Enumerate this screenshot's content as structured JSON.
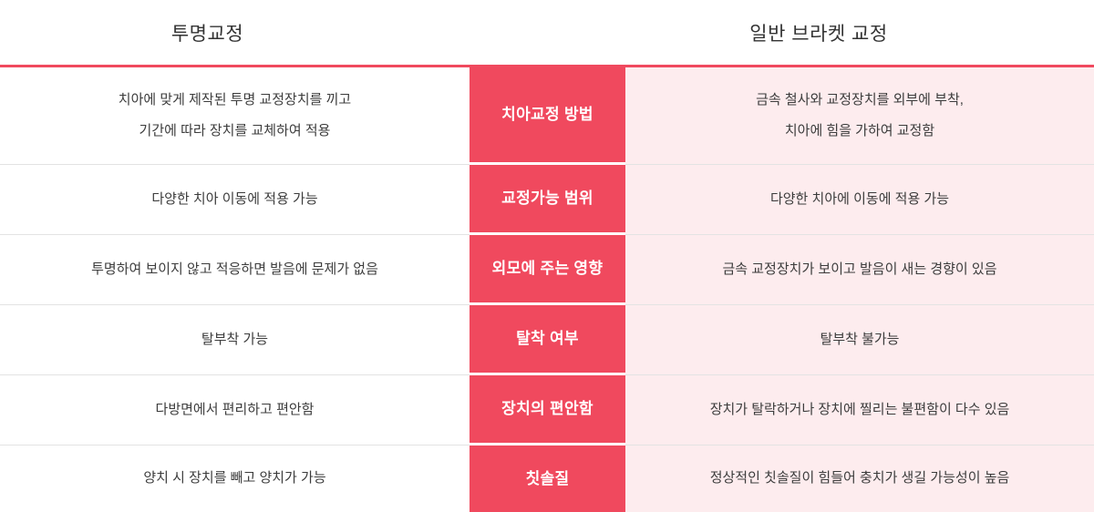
{
  "chart_data": {
    "type": "table",
    "column_headers": {
      "clear": "투명교정",
      "bracket": "일반 브라켓 교정"
    },
    "rows": [
      {
        "category": "치아교정 방법",
        "clear": "치아에 맞게 제작된 투명 교정장치를 끼고\n기간에 따라 장치를 교체하여 적용",
        "bracket": "금속 철사와 교정장치를 외부에 부착,\n치아에 힘을 가하여 교정함"
      },
      {
        "category": "교정가능 범위",
        "clear": "다양한 치아 이동에 적용 가능",
        "bracket": "다양한 치아에 이동에 적용 가능"
      },
      {
        "category": "외모에 주는 영향",
        "clear": "투명하여 보이지 않고 적응하면 발음에 문제가 없음",
        "bracket": "금속 교정장치가 보이고 발음이 새는 경향이 있음"
      },
      {
        "category": "탈착 여부",
        "clear": "탈부착 가능",
        "bracket": "탈부착 불가능"
      },
      {
        "category": "장치의 편안함",
        "clear": "다방면에서 편리하고 편안함",
        "bracket": "장치가 탈락하거나 장치에 찔리는 불편함이 다수 있음"
      },
      {
        "category": "칫솔질",
        "clear": "양치 시 장치를 빼고 양치가 가능",
        "bracket": "정상적인 칫솔질이 힘들어 충치가 생길 가능성이 높음"
      }
    ],
    "layout": {
      "legend": "none",
      "grid": "row-dividers"
    }
  },
  "colors": {
    "accent_red": "#F0495E",
    "light_pink": "#FDECEE",
    "divider_gray": "#E3E3E3",
    "text_dark": "#3C3C3C"
  }
}
